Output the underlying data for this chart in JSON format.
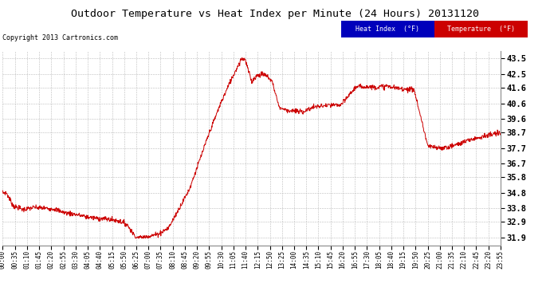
{
  "title": "Outdoor Temperature vs Heat Index per Minute (24 Hours) 20131120",
  "copyright": "Copyright 2013 Cartronics.com",
  "background_color": "#ffffff",
  "plot_bg_color": "#ffffff",
  "grid_color": "#bbbbbb",
  "line_color": "#cc0000",
  "yticks": [
    31.9,
    32.9,
    33.8,
    34.8,
    35.8,
    36.7,
    37.7,
    38.7,
    39.6,
    40.6,
    41.6,
    42.5,
    43.5
  ],
  "ymin": 31.4,
  "ymax": 44.0,
  "legend_heat_index_color": "#0000bb",
  "legend_heat_index_text": "Heat Index  (°F)",
  "legend_temp_color": "#cc0000",
  "legend_temp_text": "Temperature  (°F)",
  "xtick_labels": [
    "00:00",
    "00:35",
    "01:10",
    "01:45",
    "02:20",
    "02:55",
    "03:30",
    "04:05",
    "04:40",
    "05:15",
    "05:50",
    "06:25",
    "07:00",
    "07:35",
    "08:10",
    "08:45",
    "09:20",
    "09:55",
    "10:30",
    "11:05",
    "11:40",
    "12:15",
    "12:50",
    "13:25",
    "14:00",
    "14:35",
    "15:10",
    "15:45",
    "16:20",
    "16:55",
    "17:30",
    "18:05",
    "18:40",
    "19:15",
    "19:50",
    "20:25",
    "21:00",
    "21:35",
    "22:10",
    "22:45",
    "23:20",
    "23:55"
  ]
}
